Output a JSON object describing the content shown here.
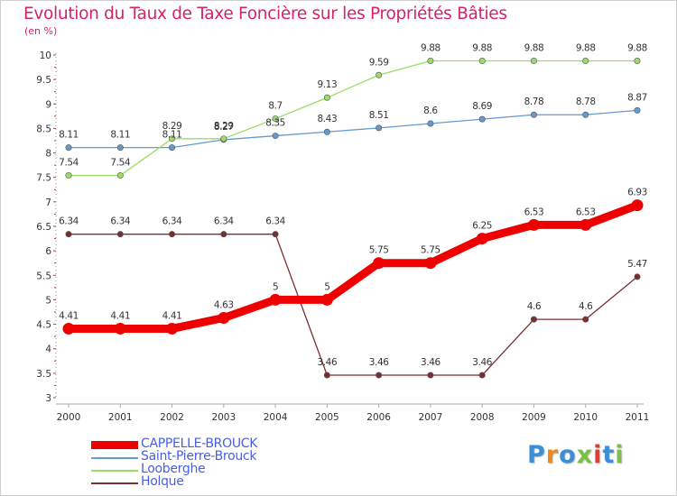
{
  "title": "Evolution du Taux de Taxe Foncière sur les Propriétés Bâties",
  "unit_label": "(en %)",
  "logo_text": "Proxiti",
  "logo_colors": [
    "#3a8fd8",
    "#f08a1c",
    "#3a8fd8",
    "#7cc04a",
    "#e63b2e",
    "#3a8fd8",
    "#7cc04a"
  ],
  "chart_data": {
    "type": "line",
    "title": "Evolution du Taux de Taxe Foncière sur les Propriétés Bâties",
    "ylabel": "(en %)",
    "xlabel": "",
    "x": [
      "2000",
      "2001",
      "2002",
      "2003",
      "2004",
      "2005",
      "2006",
      "2007",
      "2008",
      "2009",
      "2010",
      "2011"
    ],
    "ylim": [
      3,
      10
    ],
    "yticks": [
      "3",
      "3.5",
      "4",
      "4.5",
      "5",
      "5.5",
      "6",
      "6.5",
      "7",
      "7.5",
      "8",
      "8.5",
      "9",
      "9.5",
      "10"
    ],
    "grid": false,
    "legend_position": "bottom-left",
    "series": [
      {
        "name": "CAPPELLE-BROUCK",
        "color": "#ee0000",
        "emphasis": "thick",
        "values": [
          4.41,
          4.41,
          4.41,
          4.63,
          5,
          5,
          5.75,
          5.75,
          6.25,
          6.53,
          6.53,
          6.93
        ],
        "labels": [
          "4.41",
          "4.41",
          "4.41",
          "4.63",
          "5",
          "5",
          "5.75",
          "5.75",
          "6.25",
          "6.53",
          "6.53",
          "6.93"
        ]
      },
      {
        "name": "Saint-Pierre-Brouck",
        "color": "#6699cc",
        "emphasis": "thin",
        "values": [
          8.11,
          8.11,
          8.11,
          8.27,
          8.35,
          8.43,
          8.51,
          8.6,
          8.69,
          8.78,
          8.78,
          8.87
        ],
        "labels": [
          "8.11",
          "8.11",
          "8.11",
          "8.27",
          "8.35",
          "8.43",
          "8.51",
          "8.6",
          "8.69",
          "8.78",
          "8.78",
          "8.87"
        ]
      },
      {
        "name": "Looberghe",
        "color": "#99dd66",
        "emphasis": "thin",
        "values": [
          7.54,
          7.54,
          8.29,
          8.29,
          8.7,
          9.13,
          9.59,
          9.88,
          9.88,
          9.88,
          9.88,
          9.88
        ],
        "labels": [
          "7.54",
          "7.54",
          "8.29",
          "8.29",
          "8.7",
          "9.13",
          "9.59",
          "9.88",
          "9.88",
          "9.88",
          "9.88",
          "9.88"
        ]
      },
      {
        "name": "Holque",
        "color": "#7a2e2e",
        "emphasis": "thin",
        "values": [
          6.34,
          6.34,
          6.34,
          6.34,
          6.34,
          3.46,
          3.46,
          3.46,
          3.46,
          4.6,
          4.6,
          5.47
        ],
        "labels": [
          "6.34",
          "6.34",
          "6.34",
          "6.34",
          "6.34",
          "3.46",
          "3.46",
          "3.46",
          "3.46",
          "4.6",
          "4.6",
          "5.47"
        ]
      }
    ]
  }
}
